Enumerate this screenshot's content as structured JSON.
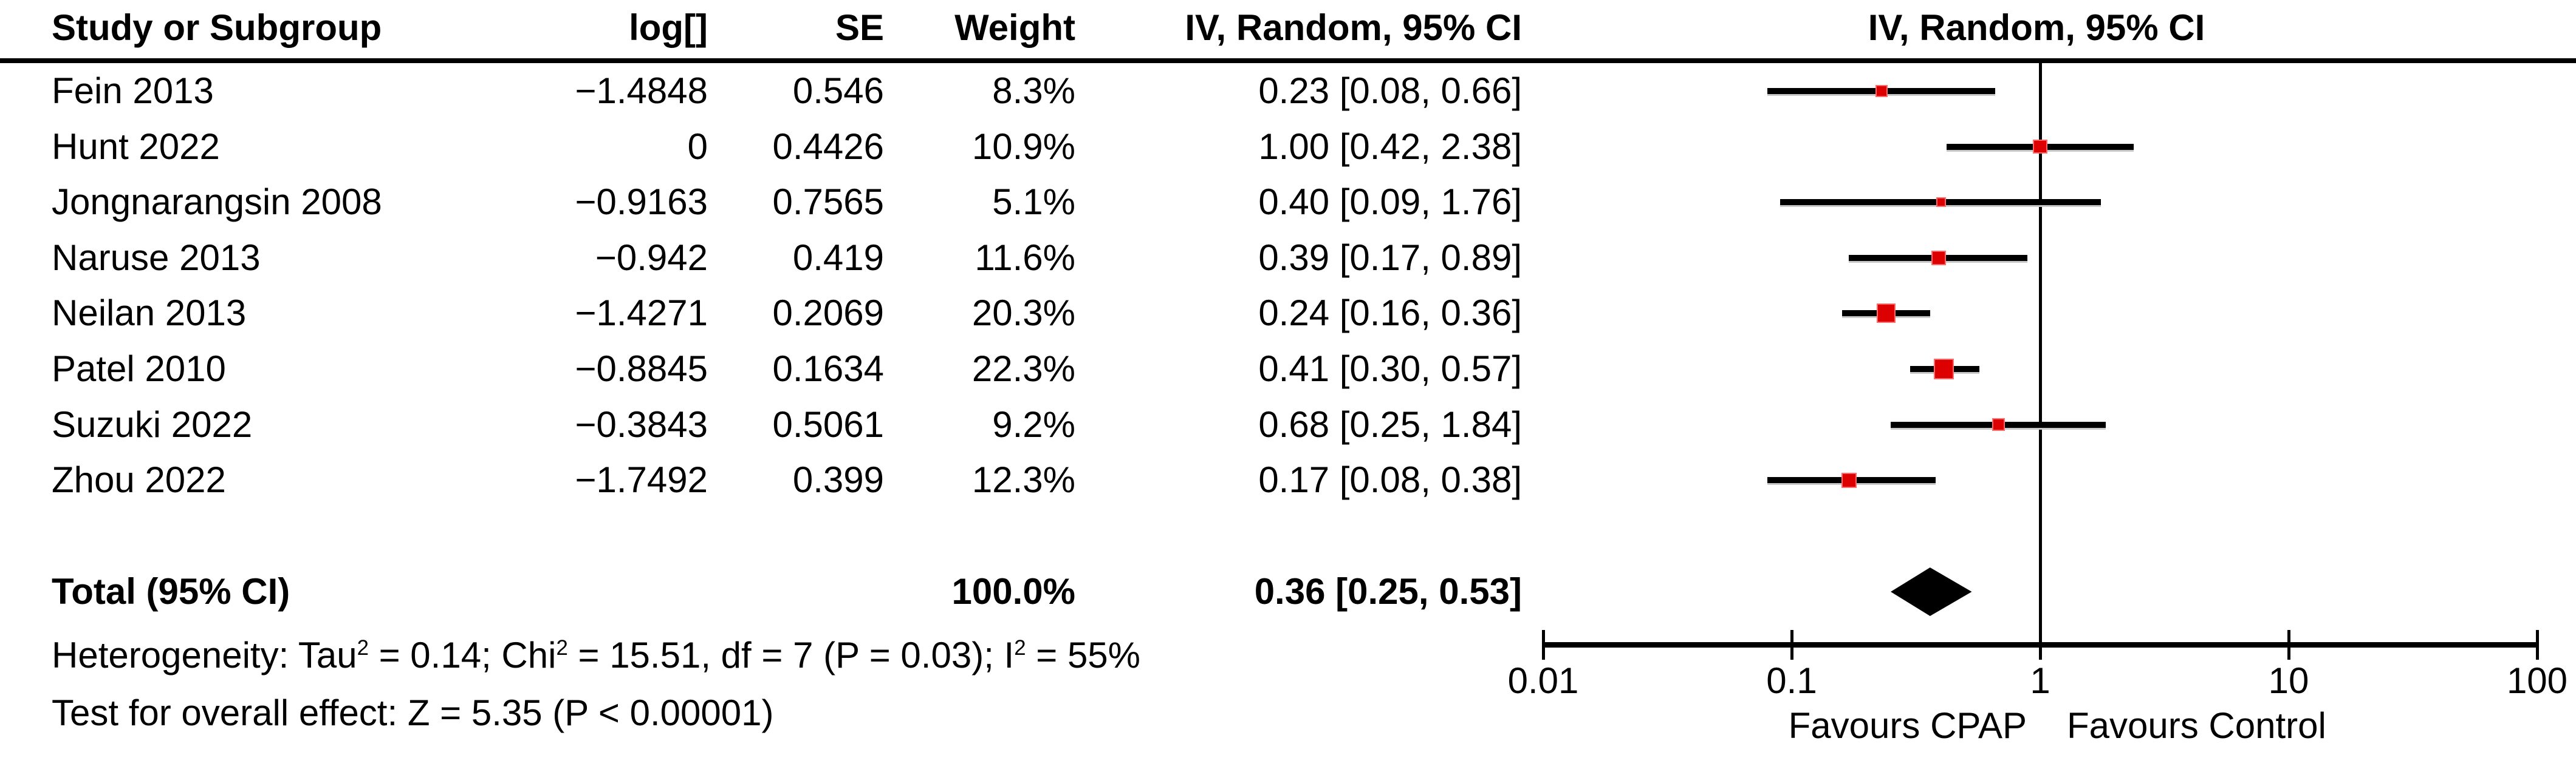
{
  "header": {
    "study": "Study or Subgroup",
    "log": "log[]",
    "se": "SE",
    "weight": "Weight",
    "ci": "IV, Random, 95% CI",
    "plot_ci": "IV, Random, 95% CI"
  },
  "rows": [
    {
      "study": "Fein 2013",
      "log": "−1.4848",
      "se": "0.546",
      "weight": "8.3%",
      "ci": "0.23 [0.08, 0.66]"
    },
    {
      "study": "Hunt 2022",
      "log": "0",
      "se": "0.4426",
      "weight": "10.9%",
      "ci": "1.00 [0.42, 2.38]"
    },
    {
      "study": "Jongnarangsin 2008",
      "log": "−0.9163",
      "se": "0.7565",
      "weight": "5.1%",
      "ci": "0.40 [0.09, 1.76]"
    },
    {
      "study": "Naruse 2013",
      "log": "−0.942",
      "se": "0.419",
      "weight": "11.6%",
      "ci": "0.39 [0.17, 0.89]"
    },
    {
      "study": "Neilan 2013",
      "log": "−1.4271",
      "se": "0.2069",
      "weight": "20.3%",
      "ci": "0.24 [0.16, 0.36]"
    },
    {
      "study": "Patel 2010",
      "log": "−0.8845",
      "se": "0.1634",
      "weight": "22.3%",
      "ci": "0.41 [0.30, 0.57]"
    },
    {
      "study": "Suzuki 2022",
      "log": "−0.3843",
      "se": "0.5061",
      "weight": "9.2%",
      "ci": "0.68 [0.25, 1.84]"
    },
    {
      "study": "Zhou 2022",
      "log": "−1.7492",
      "se": "0.399",
      "weight": "12.3%",
      "ci": "0.17 [0.08, 0.38]"
    }
  ],
  "total": {
    "label": "Total (95% CI)",
    "weight": "100.0%",
    "ci": "0.36 [0.25, 0.53]"
  },
  "stats": {
    "het_prefix": "Heterogeneity: Tau",
    "sup": "2",
    "het_mid1": " = 0.14; Chi",
    "het_mid2": " = 15.51, df = 7 (P = 0.03); I",
    "het_suffix": " = 55%",
    "overall_effect": "Test for overall effect: Z = 5.35 (P < 0.00001)"
  },
  "axis": {
    "tick_labels": [
      "0.01",
      "0.1",
      "1",
      "10",
      "100"
    ],
    "favours_left": "Favours CPAP",
    "favours_right": "Favours Control"
  },
  "colors": {
    "marker_fill": "#dd0000",
    "marker_border": "#ff6b6b",
    "line": "#000000",
    "diamond": "#000000"
  },
  "chart_data": {
    "type": "forest",
    "effect_header": "IV, Random, 95% CI",
    "x_scale": "log10",
    "x_ticks": [
      0.01,
      0.1,
      1,
      10,
      100
    ],
    "xlim": [
      0.01,
      100
    ],
    "null_line": 1,
    "studies": [
      {
        "name": "Fein 2013",
        "log_effect": -1.4848,
        "se": 0.546,
        "weight_pct": 8.3,
        "estimate": 0.23,
        "ci_low": 0.08,
        "ci_high": 0.66
      },
      {
        "name": "Hunt 2022",
        "log_effect": 0,
        "se": 0.4426,
        "weight_pct": 10.9,
        "estimate": 1.0,
        "ci_low": 0.42,
        "ci_high": 2.38
      },
      {
        "name": "Jongnarangsin 2008",
        "log_effect": -0.9163,
        "se": 0.7565,
        "weight_pct": 5.1,
        "estimate": 0.4,
        "ci_low": 0.09,
        "ci_high": 1.76
      },
      {
        "name": "Naruse 2013",
        "log_effect": -0.942,
        "se": 0.419,
        "weight_pct": 11.6,
        "estimate": 0.39,
        "ci_low": 0.17,
        "ci_high": 0.89
      },
      {
        "name": "Neilan 2013",
        "log_effect": -1.4271,
        "se": 0.2069,
        "weight_pct": 20.3,
        "estimate": 0.24,
        "ci_low": 0.16,
        "ci_high": 0.36
      },
      {
        "name": "Patel 2010",
        "log_effect": -0.8845,
        "se": 0.1634,
        "weight_pct": 22.3,
        "estimate": 0.41,
        "ci_low": 0.3,
        "ci_high": 0.57
      },
      {
        "name": "Suzuki 2022",
        "log_effect": -0.3843,
        "se": 0.5061,
        "weight_pct": 9.2,
        "estimate": 0.68,
        "ci_low": 0.25,
        "ci_high": 1.84
      },
      {
        "name": "Zhou 2022",
        "log_effect": -1.7492,
        "se": 0.399,
        "weight_pct": 12.3,
        "estimate": 0.17,
        "ci_low": 0.08,
        "ci_high": 0.38
      }
    ],
    "total": {
      "label": "Total (95% CI)",
      "weight_pct": 100.0,
      "estimate": 0.36,
      "ci_low": 0.25,
      "ci_high": 0.53
    },
    "heterogeneity": "Tau2 = 0.14; Chi2 = 15.51, df = 7 (P = 0.03); I2 = 55%",
    "overall_effect_test": "Z = 5.35 (P < 0.00001)",
    "favours_left": "Favours CPAP",
    "favours_right": "Favours Control",
    "legend_position": "none",
    "grid": false
  }
}
